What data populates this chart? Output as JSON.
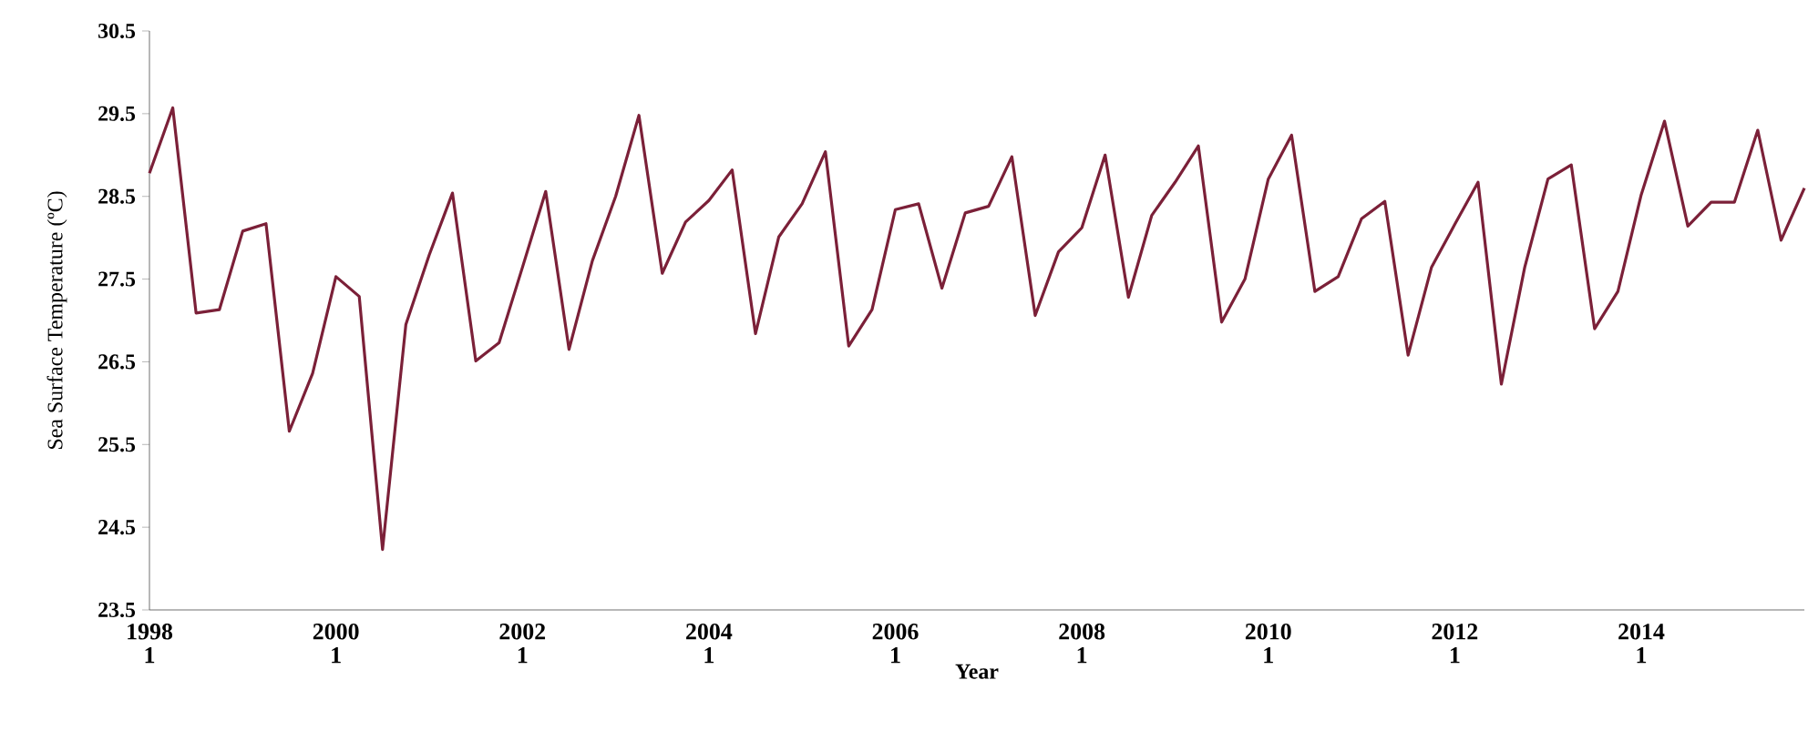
{
  "chart_data": {
    "type": "line",
    "xlabel": "Year",
    "ylabel": "Sea Surface Temperature (ºC)",
    "categories": [
      "1998 1",
      null,
      null,
      null,
      null,
      null,
      null,
      null,
      "2000 1",
      null,
      null,
      null,
      null,
      null,
      null,
      null,
      "2002 1",
      null,
      null,
      null,
      null,
      null,
      null,
      null,
      "2004 1",
      null,
      null,
      null,
      null,
      null,
      null,
      null,
      "2006 1",
      null,
      null,
      null,
      null,
      null,
      null,
      null,
      "2008 1",
      null,
      null,
      null,
      null,
      null,
      null,
      null,
      "2010 1",
      null,
      null,
      null,
      null,
      null,
      null,
      null,
      "2012 1",
      null,
      null,
      null,
      null,
      null,
      null,
      null,
      "2014 1",
      null,
      null,
      null,
      null,
      null,
      null,
      null
    ],
    "series": [
      {
        "color": "#7b2038",
        "values": [
          28.78,
          29.57,
          27.09,
          27.13,
          28.08,
          28.17,
          25.66,
          26.36,
          27.53,
          27.29,
          24.23,
          26.95,
          27.79,
          28.54,
          26.51,
          26.73,
          27.64,
          28.56,
          26.65,
          27.72,
          28.5,
          29.48,
          27.57,
          28.19,
          28.45,
          28.82,
          26.84,
          28.01,
          28.41,
          29.04,
          26.69,
          27.13,
          28.34,
          28.41,
          27.39,
          28.3,
          28.38,
          28.98,
          27.06,
          27.83,
          28.12,
          29.0,
          27.28,
          28.27,
          28.67,
          29.11,
          26.98,
          27.5,
          28.71,
          29.24,
          27.35,
          27.53,
          28.23,
          28.44,
          26.58,
          27.64,
          28.16,
          28.67,
          26.23,
          27.64,
          28.71,
          28.88,
          26.9,
          27.35,
          28.52,
          29.41,
          28.14,
          28.43,
          28.43,
          29.3,
          27.97,
          28.6
        ]
      }
    ],
    "ylim": [
      23.5,
      30.5
    ],
    "yticks": [
      23.5,
      24.5,
      25.5,
      26.5,
      27.5,
      28.5,
      29.5,
      30.5
    ],
    "grid": false,
    "marker": "none",
    "line_style": "solid"
  }
}
